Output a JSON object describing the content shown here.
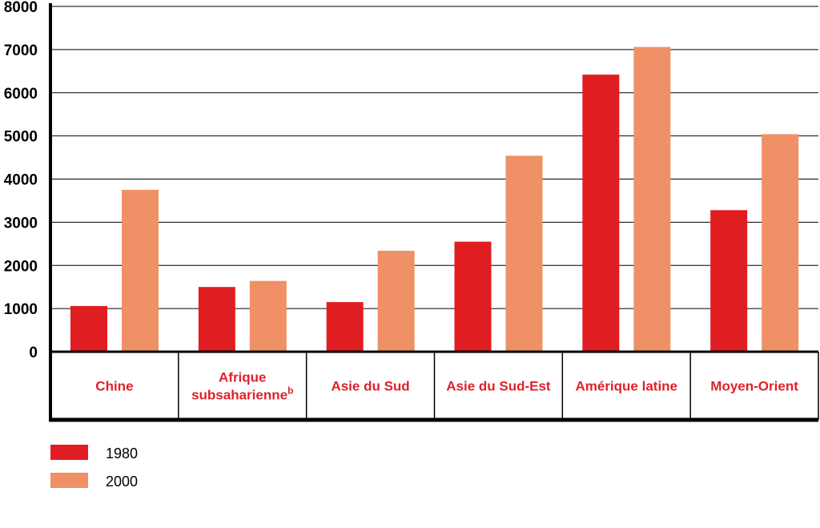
{
  "chart_data": {
    "type": "bar",
    "categories": [
      "Chine",
      "Afrique subsaharienne",
      "Asie du Sud",
      "Asie du Sud-Est",
      "Amérique latine",
      "Moyen-Orient"
    ],
    "category_lines": [
      [
        "Chine"
      ],
      [
        "Afrique",
        "subsaharienne"
      ],
      [
        "Asie du Sud"
      ],
      [
        "Asie du Sud-Est"
      ],
      [
        "Amérique latine"
      ],
      [
        "Moyen-Orient"
      ]
    ],
    "category_notes": [
      "",
      "b",
      "",
      "",
      "",
      ""
    ],
    "series": [
      {
        "name": "1980",
        "color": "#e01e22",
        "values": [
          1060,
          1500,
          1150,
          2550,
          6420,
          3280
        ]
      },
      {
        "name": "2000",
        "color": "#f09066",
        "values": [
          3750,
          1640,
          2340,
          4540,
          7060,
          5040
        ]
      }
    ],
    "yticks": [
      "0",
      "1000",
      "2000",
      "3000",
      "4000",
      "5000",
      "6000",
      "7000",
      "8000"
    ],
    "ylim": [
      0,
      8000
    ],
    "grid": true,
    "legend_position": "bottom-left"
  }
}
